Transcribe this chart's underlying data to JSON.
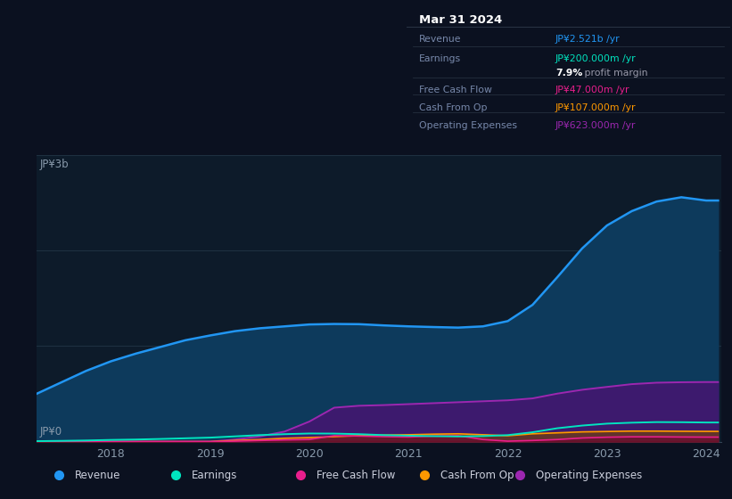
{
  "bg_color": "#0b1120",
  "chart_bg": "#0d1b2a",
  "ylabel": "JP¥3b",
  "y0label": "JP¥0",
  "ylim": [
    0,
    3000000000
  ],
  "x_years": [
    2017.25,
    2017.5,
    2017.75,
    2018.0,
    2018.25,
    2018.5,
    2018.75,
    2019.0,
    2019.25,
    2019.5,
    2019.75,
    2020.0,
    2020.25,
    2020.5,
    2020.75,
    2021.0,
    2021.25,
    2021.5,
    2021.75,
    2022.0,
    2022.25,
    2022.5,
    2022.75,
    2023.0,
    2023.25,
    2023.5,
    2023.75,
    2024.0,
    2024.12
  ],
  "revenue": [
    500000000.0,
    620000000.0,
    740000000.0,
    840000000.0,
    920000000.0,
    990000000.0,
    1060000000.0,
    1110000000.0,
    1155000000.0,
    1185000000.0,
    1205000000.0,
    1225000000.0,
    1230000000.0,
    1228000000.0,
    1215000000.0,
    1205000000.0,
    1198000000.0,
    1192000000.0,
    1205000000.0,
    1260000000.0,
    1430000000.0,
    1720000000.0,
    2020000000.0,
    2260000000.0,
    2410000000.0,
    2510000000.0,
    2555000000.0,
    2521000000.0,
    2521000000.0
  ],
  "earnings": [
    5000000.0,
    8000000.0,
    12000000.0,
    18000000.0,
    22000000.0,
    28000000.0,
    35000000.0,
    42000000.0,
    55000000.0,
    68000000.0,
    78000000.0,
    85000000.0,
    84000000.0,
    78000000.0,
    68000000.0,
    62000000.0,
    57000000.0,
    54000000.0,
    58000000.0,
    68000000.0,
    98000000.0,
    140000000.0,
    168000000.0,
    188000000.0,
    198000000.0,
    204000000.0,
    203000000.0,
    200000000.0,
    200000000.0
  ],
  "free_cash_flow": [
    0,
    0,
    0,
    0,
    0,
    0,
    0,
    0,
    5000000.0,
    12000000.0,
    18000000.0,
    22000000.0,
    62000000.0,
    58000000.0,
    52000000.0,
    48000000.0,
    58000000.0,
    62000000.0,
    22000000.0,
    5000000.0,
    12000000.0,
    22000000.0,
    38000000.0,
    46000000.0,
    50000000.0,
    50000000.0,
    48000000.0,
    47000000.0,
    47000000.0
  ],
  "cash_from_op": [
    0,
    0,
    0,
    0,
    0,
    0,
    0,
    0,
    12000000.0,
    22000000.0,
    35000000.0,
    42000000.0,
    52000000.0,
    62000000.0,
    68000000.0,
    72000000.0,
    78000000.0,
    82000000.0,
    72000000.0,
    62000000.0,
    82000000.0,
    92000000.0,
    102000000.0,
    106000000.0,
    110000000.0,
    110000000.0,
    108000000.0,
    107000000.0,
    107000000.0
  ],
  "op_expenses": [
    0,
    0,
    0,
    0,
    0,
    0,
    0,
    0,
    22000000.0,
    55000000.0,
    105000000.0,
    210000000.0,
    355000000.0,
    375000000.0,
    382000000.0,
    392000000.0,
    402000000.0,
    412000000.0,
    422000000.0,
    432000000.0,
    452000000.0,
    502000000.0,
    542000000.0,
    572000000.0,
    601000000.0,
    616000000.0,
    621000000.0,
    623000000.0,
    623000000.0
  ],
  "revenue_color": "#2196f3",
  "revenue_fill": "#0d3a5c",
  "earnings_color": "#00e5c0",
  "fcf_color": "#e91e8c",
  "cashop_color": "#ff9800",
  "opex_color": "#9c27b0",
  "opex_fill": "#3d1a6e",
  "xtick_labels": [
    "2018",
    "2019",
    "2020",
    "2021",
    "2022",
    "2023",
    "2024"
  ],
  "xtick_positions": [
    2018,
    2019,
    2020,
    2021,
    2022,
    2023,
    2024
  ],
  "legend_items": [
    "Revenue",
    "Earnings",
    "Free Cash Flow",
    "Cash From Op",
    "Operating Expenses"
  ],
  "legend_colors": [
    "#2196f3",
    "#00e5c0",
    "#e91e8c",
    "#ff9800",
    "#9c27b0"
  ],
  "panel": {
    "title": "Mar 31 2024",
    "rows": [
      {
        "label": "Revenue",
        "value": "JP¥2.521b /yr",
        "value_color": "#2196f3",
        "sep": true
      },
      {
        "label": "Earnings",
        "value": "JP¥200.000m /yr",
        "value_color": "#00e5c0",
        "sep": false
      },
      {
        "label": "",
        "value": "7.9% profit margin",
        "value_color": "#aaaaaa",
        "sep": true,
        "bold_part": "7.9%"
      },
      {
        "label": "Free Cash Flow",
        "value": "JP¥47.000m /yr",
        "value_color": "#e91e8c",
        "sep": true
      },
      {
        "label": "Cash From Op",
        "value": "JP¥107.000m /yr",
        "value_color": "#ff9800",
        "sep": true
      },
      {
        "label": "Operating Expenses",
        "value": "JP¥623.000m /yr",
        "value_color": "#9c27b0",
        "sep": false
      }
    ]
  }
}
